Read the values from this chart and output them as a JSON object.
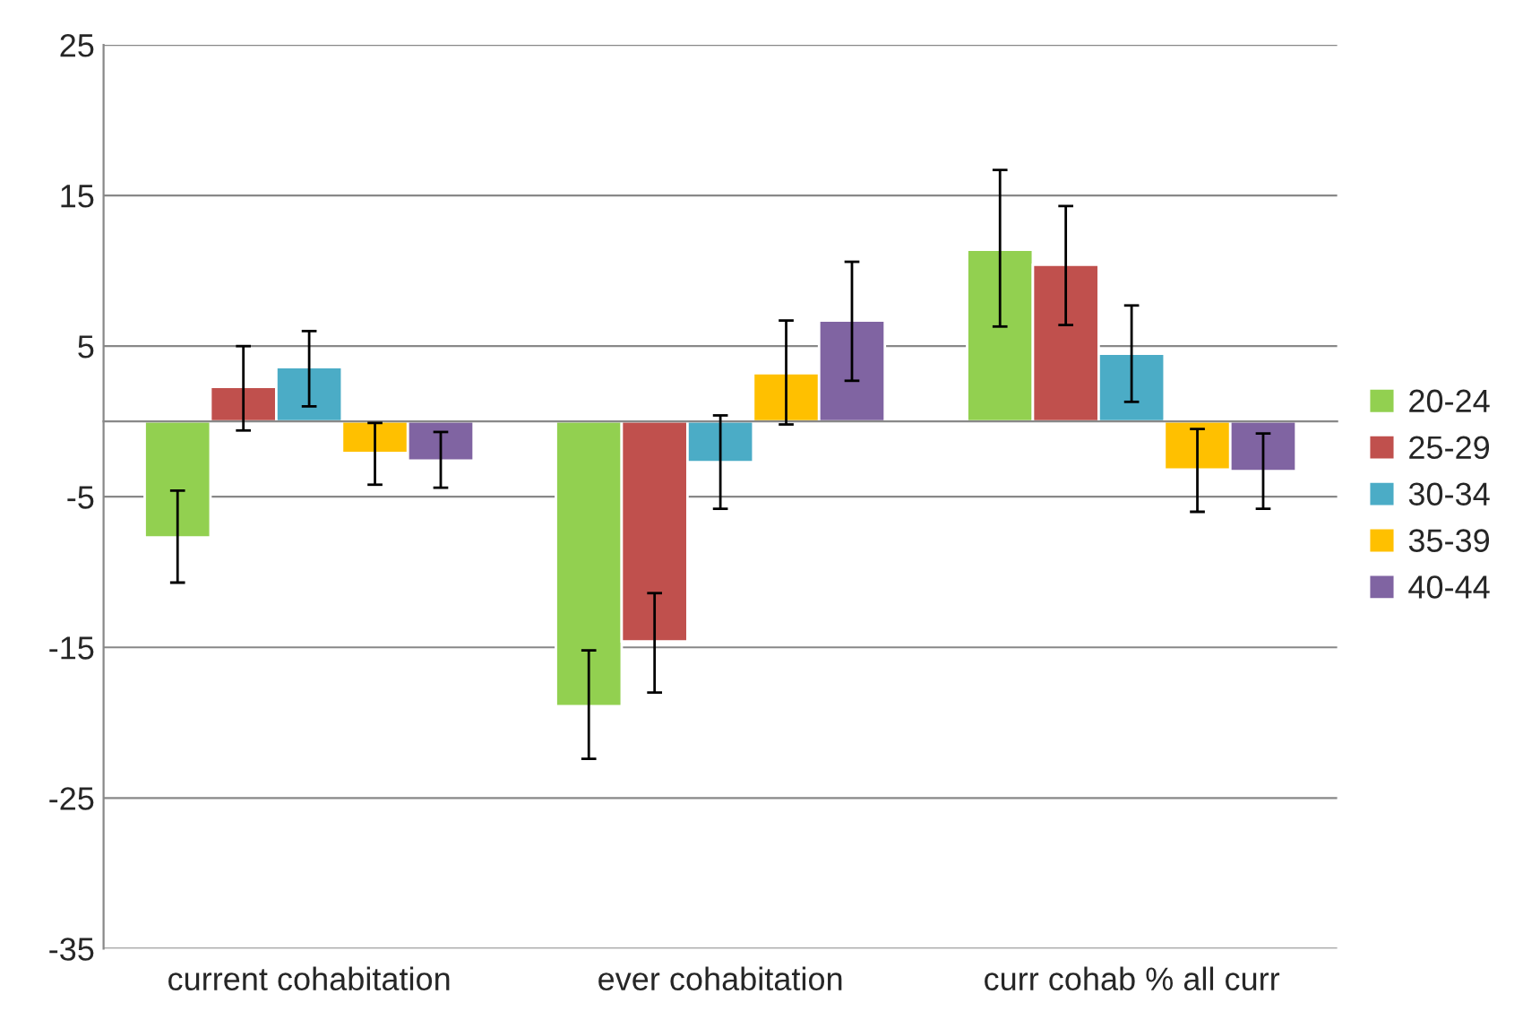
{
  "chart_data": {
    "type": "bar",
    "categories": [
      "current cohabitation",
      "ever cohabitation",
      "curr cohab % all curr"
    ],
    "series": [
      {
        "name": "20-24",
        "color": "#92d050",
        "values": [
          -7.7,
          -18.9,
          11.4
        ],
        "errors": [
          [
            -10.7,
            -4.6
          ],
          [
            -22.4,
            -15.2
          ],
          [
            6.3,
            16.7
          ]
        ]
      },
      {
        "name": "25-29",
        "color": "#c0504d",
        "values": [
          2.3,
          -14.6,
          10.4
        ],
        "errors": [
          [
            -0.6,
            5.0
          ],
          [
            -18.0,
            -11.4
          ],
          [
            6.4,
            14.3
          ]
        ]
      },
      {
        "name": "30-34",
        "color": "#4bacc6",
        "values": [
          3.6,
          -2.7,
          4.5
        ],
        "errors": [
          [
            1.0,
            6.0
          ],
          [
            -5.8,
            0.4
          ],
          [
            1.3,
            7.7
          ]
        ]
      },
      {
        "name": "35-39",
        "color": "#ffc000",
        "values": [
          -2.1,
          3.2,
          -3.2
        ],
        "errors": [
          [
            -4.2,
            -0.1
          ],
          [
            -0.2,
            6.7
          ],
          [
            -6.0,
            -0.5
          ]
        ]
      },
      {
        "name": "40-44",
        "color": "#8064a2",
        "values": [
          -2.6,
          6.7,
          -3.3
        ],
        "errors": [
          [
            -4.4,
            -0.7
          ],
          [
            2.7,
            10.6
          ],
          [
            -5.8,
            -0.8
          ]
        ]
      }
    ],
    "ylim": [
      -35,
      25
    ],
    "yticks": [
      -35,
      -25,
      -15,
      -5,
      5,
      15,
      25
    ],
    "grid": "y",
    "legend": "right"
  }
}
